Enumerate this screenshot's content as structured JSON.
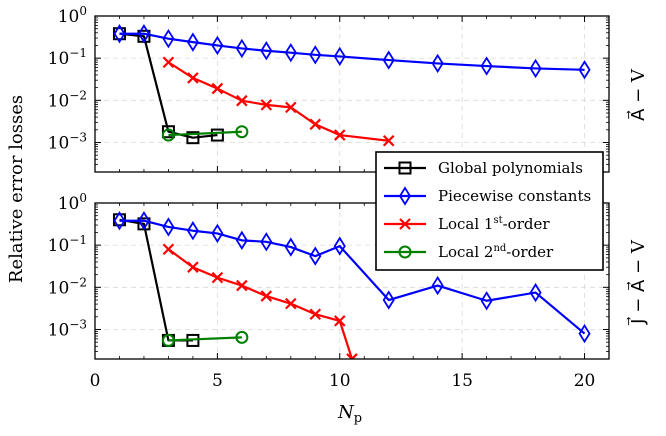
{
  "chart_data": {
    "type": "line",
    "ylabel": "Relative error losses",
    "xlabel_main": "N",
    "xlabel_sub": "p",
    "x_ticks": [
      "0",
      "5",
      "10",
      "15",
      "20"
    ],
    "xlim": [
      0,
      21
    ],
    "ylim_exp": [
      -3.7,
      0
    ],
    "y_tick_exponents": [
      "0",
      "−1",
      "−2",
      "−3"
    ],
    "legend": [
      {
        "label": "Global polynomials",
        "color": "#000000",
        "marker": "square"
      },
      {
        "label": "Piecewise constants",
        "color": "#0000ff",
        "marker": "diamond"
      },
      {
        "label_base": "Local 1",
        "label_sup": "st",
        "label_tail": "-order",
        "color": "#ff0000",
        "marker": "x"
      },
      {
        "label_base": "Local 2",
        "label_sup": "nd",
        "label_tail": "-order",
        "color": "#008000",
        "marker": "circle"
      }
    ],
    "panels": [
      {
        "right_label": "A⃗ − V",
        "series": [
          {
            "name": "Global polynomials",
            "color": "#000000",
            "marker": "square",
            "x": [
              1,
              2,
              3,
              4,
              5
            ],
            "y": [
              0.38,
              0.33,
              0.0018,
              0.0013,
              0.0015
            ]
          },
          {
            "name": "Piecewise constants",
            "color": "#0000ff",
            "marker": "diamond",
            "x": [
              1,
              2,
              3,
              4,
              5,
              6,
              7,
              8,
              9,
              10,
              12,
              14,
              16,
              18,
              20
            ],
            "y": [
              0.38,
              0.38,
              0.29,
              0.24,
              0.2,
              0.17,
              0.15,
              0.135,
              0.12,
              0.11,
              0.09,
              0.075,
              0.065,
              0.057,
              0.053
            ]
          },
          {
            "name": "Local 1st-order",
            "color": "#ff0000",
            "marker": "x",
            "x": [
              3,
              4,
              5,
              6,
              7,
              8,
              9,
              10,
              12
            ],
            "y": [
              0.08,
              0.034,
              0.019,
              0.0098,
              0.0078,
              0.0068,
              0.0027,
              0.0015,
              0.0011
            ]
          },
          {
            "name": "Local 2nd-order",
            "color": "#008000",
            "marker": "circle",
            "x": [
              3,
              6
            ],
            "y": [
              0.0015,
              0.0018
            ]
          }
        ]
      },
      {
        "right_label": "J⃗ − A⃗ − V",
        "series": [
          {
            "name": "Global polynomials",
            "color": "#000000",
            "marker": "square",
            "x": [
              1,
              2,
              3,
              4
            ],
            "y": [
              0.4,
              0.32,
              0.00055,
              0.00055
            ]
          },
          {
            "name": "Piecewise constants",
            "color": "#0000ff",
            "marker": "diamond",
            "x": [
              1,
              2,
              3,
              4,
              5,
              6,
              7,
              8,
              9,
              10,
              12,
              14,
              16,
              18,
              20
            ],
            "y": [
              0.38,
              0.38,
              0.27,
              0.22,
              0.19,
              0.13,
              0.12,
              0.09,
              0.055,
              0.095,
              0.005,
              0.011,
              0.0048,
              0.0075,
              0.0008
            ]
          },
          {
            "name": "Local 1st-order",
            "color": "#ff0000",
            "marker": "x",
            "x": [
              3,
              4,
              5,
              6,
              7,
              8,
              9,
              10,
              10.5
            ],
            "y": [
              0.08,
              0.03,
              0.017,
              0.011,
              0.0062,
              0.0041,
              0.0023,
              0.0016,
              0.0002
            ]
          },
          {
            "name": "Local 2nd-order",
            "color": "#008000",
            "marker": "circle",
            "x": [
              3,
              6
            ],
            "y": [
              0.00055,
              0.00065
            ]
          }
        ]
      }
    ]
  }
}
